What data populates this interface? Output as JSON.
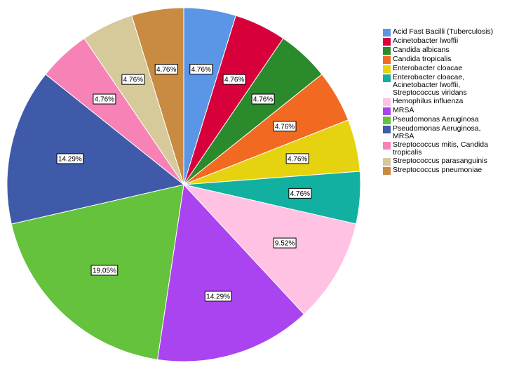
{
  "chart_data": {
    "type": "pie",
    "title": "",
    "legend_position": "right",
    "slices": [
      {
        "label": "Acid Fast Bacilli (Tuberculosis)",
        "value": 4.76,
        "display": "4.76%",
        "color": "#5a95e6"
      },
      {
        "label": "Acinetobacter lwoffii",
        "value": 4.76,
        "display": "4.76%",
        "color": "#d7003a"
      },
      {
        "label": "Candida albicans",
        "value": 4.76,
        "display": "4.76%",
        "color": "#2b8a2b"
      },
      {
        "label": "Candida tropicalis",
        "value": 4.76,
        "display": "4.76%",
        "color": "#f26a22"
      },
      {
        "label": "Enterobacter cloacae",
        "value": 4.76,
        "display": "4.76%",
        "color": "#e6d30f"
      },
      {
        "label": "Enterobacter cloacae,\nAcinetobacter lwoffii,\nStreptococcus viridans",
        "value": 4.76,
        "display": "4.76%",
        "color": "#12b0a0"
      },
      {
        "label": "Hemophilus influenza",
        "value": 9.52,
        "display": "9.52%",
        "color": "#ffc2e2"
      },
      {
        "label": "MRSA",
        "value": 14.29,
        "display": "14.29%",
        "color": "#aa44f0"
      },
      {
        "label": "Pseudomonas Aeruginosa",
        "value": 19.05,
        "display": "19.05%",
        "color": "#64c23c"
      },
      {
        "label": "Pseudomonas Aeruginosa,\nMRSA",
        "value": 14.29,
        "display": "14.29%",
        "color": "#3f5aa8"
      },
      {
        "label": "Streptococcus mitis, Candida\ntropicalis",
        "value": 4.76,
        "display": "4.76%",
        "color": "#f783b6"
      },
      {
        "label": "Streptococcus parasanguinis",
        "value": 4.76,
        "display": "4.76%",
        "color": "#d6c99a"
      },
      {
        "label": "Streptococcus pneumoniae",
        "value": 4.76,
        "display": "4.76%",
        "color": "#c98a42"
      }
    ]
  }
}
